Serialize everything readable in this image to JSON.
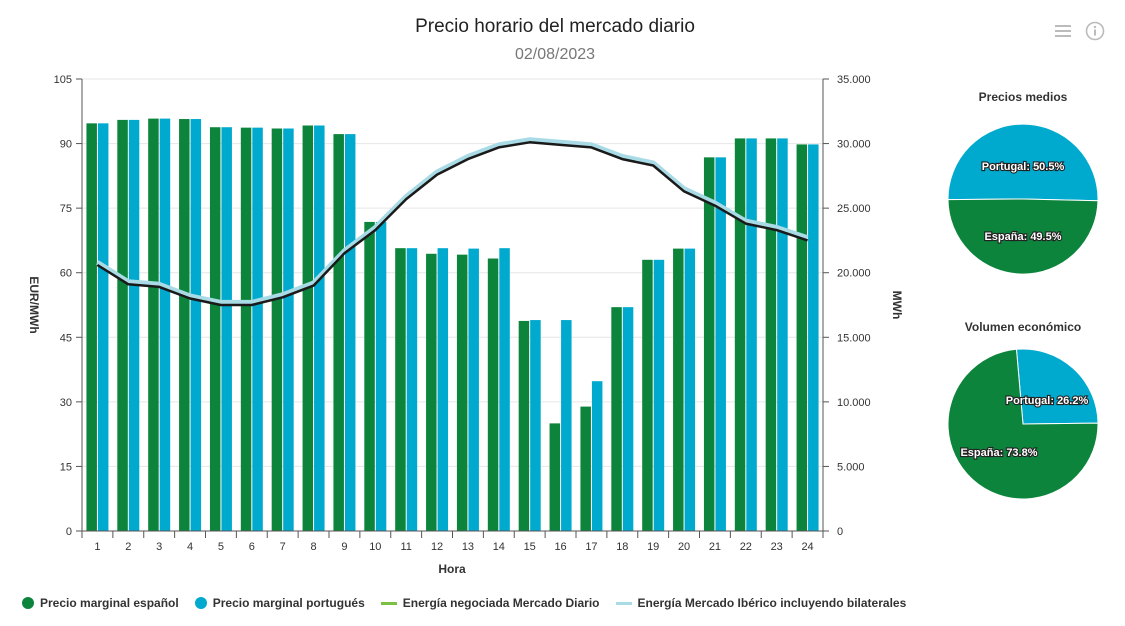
{
  "header": {
    "title": "Precio horario del mercado diario",
    "subtitle": "02/08/2023"
  },
  "icons": {
    "menu": "hamburger-menu-icon",
    "info": "info-icon"
  },
  "colors": {
    "spain": "#0c843c",
    "portugal": "#00a9ce",
    "energy_daily": "#7ac143",
    "energy_iberian": "#a8dbe6",
    "energy_line_main": "#1a1a1a"
  },
  "chart_data": [
    {
      "type": "bar",
      "title": "Precio horario del mercado diario",
      "subtitle": "02/08/2023",
      "xlabel": "Hora",
      "ylabel": "EUR/MWh",
      "ylabel_right": "MWh",
      "categories": [
        "1",
        "2",
        "3",
        "4",
        "5",
        "6",
        "7",
        "8",
        "9",
        "10",
        "11",
        "12",
        "13",
        "14",
        "15",
        "16",
        "17",
        "18",
        "19",
        "20",
        "21",
        "22",
        "23",
        "24"
      ],
      "ylim": [
        0,
        105
      ],
      "yticks": [
        "0",
        "15",
        "30",
        "45",
        "60",
        "75",
        "90",
        "105"
      ],
      "ylim_right": [
        0,
        35000
      ],
      "yticks_right": [
        "0",
        "5.000",
        "10.000",
        "15.000",
        "20.000",
        "25.000",
        "30.000",
        "35.000"
      ],
      "series": [
        {
          "name": "Precio marginal español",
          "type": "bar",
          "values": [
            94.7,
            95.5,
            95.8,
            95.7,
            93.8,
            93.7,
            93.5,
            94.2,
            92.2,
            71.8,
            65.7,
            64.4,
            64.2,
            63.3,
            48.8,
            25.0,
            28.9,
            52.0,
            63.0,
            65.6,
            86.8,
            91.2,
            91.2,
            89.8
          ]
        },
        {
          "name": "Precio marginal portugués",
          "type": "bar",
          "values": [
            94.7,
            95.5,
            95.8,
            95.7,
            93.8,
            93.7,
            93.5,
            94.2,
            92.2,
            71.8,
            65.7,
            65.7,
            65.6,
            65.7,
            49.0,
            49.0,
            34.8,
            52.0,
            63.0,
            65.6,
            86.8,
            91.2,
            91.2,
            89.8
          ]
        },
        {
          "name": "Energía negociada Mercado Diario",
          "type": "line",
          "axis": "right",
          "values": [
            20600,
            19100,
            18900,
            18000,
            17500,
            17500,
            18100,
            19000,
            21500,
            23300,
            25700,
            27600,
            28800,
            29700,
            30100,
            29900,
            29700,
            28800,
            28300,
            26300,
            25200,
            23800,
            23300,
            22500
          ]
        },
        {
          "name": "Energía Mercado Ibérico incluyendo bilaterales",
          "type": "line",
          "axis": "right",
          "values": [
            20800,
            19300,
            19100,
            18200,
            17700,
            17700,
            18300,
            19200,
            21700,
            23500,
            25900,
            27800,
            29000,
            29900,
            30300,
            30100,
            29900,
            29000,
            28500,
            26500,
            25400,
            24000,
            23500,
            22700
          ]
        }
      ],
      "grid": true,
      "legend_position": "bottom"
    },
    {
      "type": "pie",
      "title": "Precios medios",
      "slices": [
        {
          "name": "Portugal",
          "label": "Portugal: 50.5%",
          "value": 50.5
        },
        {
          "name": "España",
          "label": "España: 49.5%",
          "value": 49.5
        }
      ]
    },
    {
      "type": "pie",
      "title": "Volumen económico",
      "slices": [
        {
          "name": "Portugal",
          "label": "Portugal: 26.2%",
          "value": 26.2
        },
        {
          "name": "España",
          "label": "España: 73.8%",
          "value": 73.8
        }
      ]
    }
  ],
  "legend": [
    {
      "label": "Precio marginal español",
      "kind": "dot",
      "color": "#0c843c"
    },
    {
      "label": "Precio marginal portugués",
      "kind": "dot",
      "color": "#00a9ce"
    },
    {
      "label": "Energía negociada Mercado Diario",
      "kind": "line",
      "color": "#7ac143"
    },
    {
      "label": "Energía Mercado Ibérico incluyendo bilaterales",
      "kind": "line",
      "color": "#a8dbe6"
    }
  ]
}
